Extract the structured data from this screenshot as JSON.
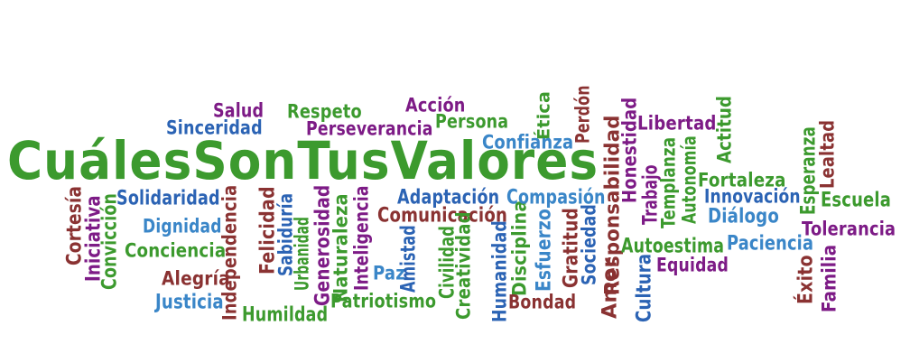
{
  "colors": {
    "green": "#3c9a2e",
    "purple": "#7d1b86",
    "blue": "#2b63b4",
    "red": "#8a3232",
    "teal": "#3a86c8"
  },
  "words": [
    {
      "text": "CuálesSonTusValores",
      "color": "green"
    },
    {
      "text": "Salud",
      "color": "purple"
    },
    {
      "text": "Respeto",
      "color": "green"
    },
    {
      "text": "Acción",
      "color": "purple"
    },
    {
      "text": "Sinceridad",
      "color": "blue"
    },
    {
      "text": "Perseverancia",
      "color": "purple"
    },
    {
      "text": "Persona",
      "color": "green"
    },
    {
      "text": "Ética",
      "color": "green"
    },
    {
      "text": "Perdón",
      "color": "red"
    },
    {
      "text": "Confianza",
      "color": "teal"
    },
    {
      "text": "Libertad",
      "color": "purple"
    },
    {
      "text": "Honestidad",
      "color": "purple"
    },
    {
      "text": "Responsabilidad",
      "color": "red"
    },
    {
      "text": "Actitud",
      "color": "green"
    },
    {
      "text": "Esperanza",
      "color": "green"
    },
    {
      "text": "Lealtad",
      "color": "red"
    },
    {
      "text": "Cortesía",
      "color": "red"
    },
    {
      "text": "Iniciativa",
      "color": "purple"
    },
    {
      "text": "Convicción",
      "color": "green"
    },
    {
      "text": "Solidaridad",
      "color": "blue"
    },
    {
      "text": "Dignidad",
      "color": "teal"
    },
    {
      "text": "Conciencia",
      "color": "green"
    },
    {
      "text": "Alegría",
      "color": "red"
    },
    {
      "text": "Justicia",
      "color": "teal"
    },
    {
      "text": "Independencia",
      "color": "red"
    },
    {
      "text": "Felicidad",
      "color": "red"
    },
    {
      "text": "Humildad",
      "color": "green"
    },
    {
      "text": "Sabiduría",
      "color": "blue"
    },
    {
      "text": "Urbanidad",
      "color": "green"
    },
    {
      "text": "Generosidad",
      "color": "purple"
    },
    {
      "text": "Naturaleza",
      "color": "green"
    },
    {
      "text": "Inteligencia",
      "color": "purple"
    },
    {
      "text": "Patriotismo",
      "color": "green"
    },
    {
      "text": "Paz",
      "color": "teal"
    },
    {
      "text": "Amistad",
      "color": "blue"
    },
    {
      "text": "Adaptación",
      "color": "blue"
    },
    {
      "text": "Comunicación",
      "color": "red"
    },
    {
      "text": "Civilidad",
      "color": "green"
    },
    {
      "text": "Creatividad",
      "color": "green"
    },
    {
      "text": "Humanidad",
      "color": "blue"
    },
    {
      "text": "Disciplina",
      "color": "green"
    },
    {
      "text": "Compasión",
      "color": "teal"
    },
    {
      "text": "Esfuerzo",
      "color": "teal"
    },
    {
      "text": "Bondad",
      "color": "red"
    },
    {
      "text": "Gratitud",
      "color": "red"
    },
    {
      "text": "Sociedad",
      "color": "blue"
    },
    {
      "text": "Amor",
      "color": "red"
    },
    {
      "text": "Trabajo",
      "color": "purple"
    },
    {
      "text": "Templanza",
      "color": "green"
    },
    {
      "text": "Autonomía",
      "color": "green"
    },
    {
      "text": "Cultura",
      "color": "blue"
    },
    {
      "text": "Autoestima",
      "color": "green"
    },
    {
      "text": "Equidad",
      "color": "purple"
    },
    {
      "text": "Fortaleza",
      "color": "green"
    },
    {
      "text": "Innovación",
      "color": "blue"
    },
    {
      "text": "Diálogo",
      "color": "teal"
    },
    {
      "text": "Paciencia",
      "color": "teal"
    },
    {
      "text": "Escuela",
      "color": "green"
    },
    {
      "text": "Tolerancia",
      "color": "purple"
    },
    {
      "text": "Éxito",
      "color": "red"
    },
    {
      "text": "Familia",
      "color": "purple"
    }
  ]
}
